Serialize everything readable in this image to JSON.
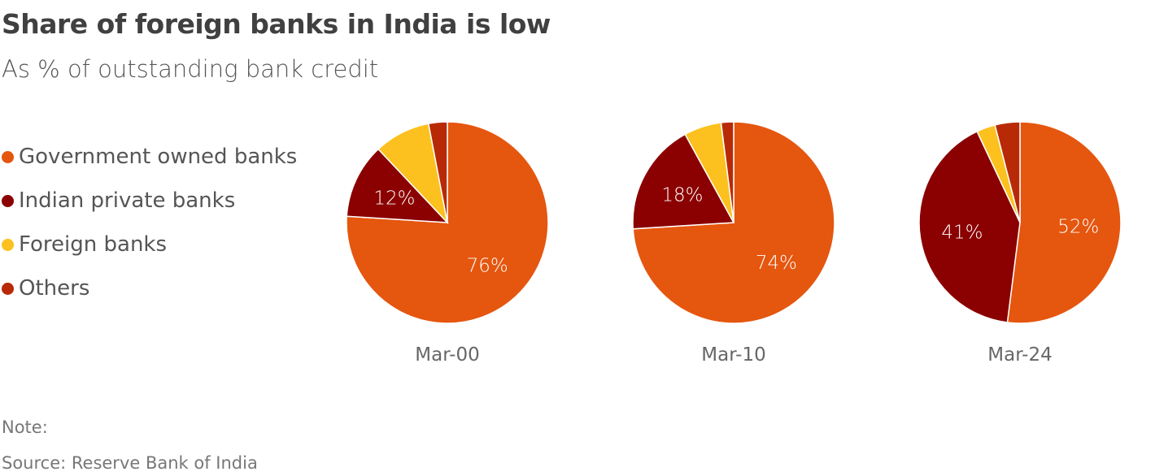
{
  "chart_data": {
    "type": "pie",
    "title": "Share of foreign banks in India is low",
    "subtitle": "As % of outstanding bank credit",
    "legend": [
      "Government owned banks",
      "Indian private banks",
      "Foreign banks",
      "Others"
    ],
    "legend_placement": "left",
    "colors": [
      "#e5560f",
      "#8b0000",
      "#fcc11f",
      "#b82a06"
    ],
    "pies": [
      {
        "label": "Mar-00",
        "values": [
          76,
          12,
          9,
          3
        ],
        "data_labels": [
          "76%",
          "12%",
          "",
          ""
        ]
      },
      {
        "label": "Mar-10",
        "values": [
          74,
          18,
          6,
          2
        ],
        "data_labels": [
          "74%",
          "18%",
          "",
          ""
        ]
      },
      {
        "label": "Mar-24",
        "values": [
          52,
          41,
          3,
          4
        ],
        "data_labels": [
          "52%",
          "41%",
          "",
          ""
        ]
      }
    ]
  },
  "footer": {
    "note": "Note:",
    "source": "Source: Reserve Bank of India"
  }
}
